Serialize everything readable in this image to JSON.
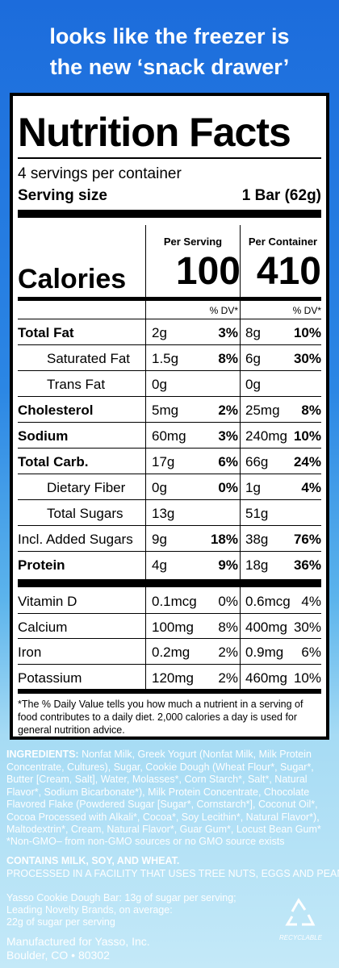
{
  "header": {
    "lines": [
      "looks like the freezer is",
      "the new ‘snack drawer’"
    ]
  },
  "nutrition": {
    "title": "Nutrition Facts",
    "servings": "4 servings per container",
    "serving_size_label": "Serving size",
    "serving_size": "1 Bar (62g)",
    "columns": [
      "Per Serving",
      "Per Container"
    ],
    "calories_label": "Calories",
    "calories": [
      "100",
      "410"
    ],
    "dv_headers": [
      "% DV*",
      "% DV*"
    ],
    "rows": [
      {
        "name": "Total Fat",
        "style": "bold",
        "amount": "2g",
        "dv": "3%",
        "container_amount": "8g",
        "container_dv": "10%"
      },
      {
        "name": "Saturated Fat",
        "style": "indent",
        "amount": "1.5g",
        "dv": "8%",
        "container_amount": "6g",
        "container_dv": "30%"
      },
      {
        "name": "Trans Fat",
        "style": "indent",
        "amount": "0g",
        "dv": null,
        "container_amount": "0g",
        "container_dv": null
      },
      {
        "name": "Cholesterol",
        "style": "bold",
        "amount": "5mg",
        "dv": "2%",
        "container_amount": "25mg",
        "container_dv": "8%"
      },
      {
        "name": "Sodium",
        "style": "bold",
        "amount": "60mg",
        "dv": "3%",
        "container_amount": "240mg",
        "container_dv": "10%"
      },
      {
        "name": "Total Carb.",
        "style": "bold",
        "amount": "17g",
        "dv": "6%",
        "container_amount": "66g",
        "container_dv": "24%"
      },
      {
        "name": "Dietary Fiber",
        "style": "indent",
        "amount": "0g",
        "dv": "0%",
        "container_amount": "1g",
        "container_dv": "4%"
      },
      {
        "name": "Total Sugars",
        "style": "indent",
        "amount": "13g",
        "dv": null,
        "container_amount": "51g",
        "container_dv": null
      },
      {
        "name": "Incl. Added Sugars",
        "style": "plain",
        "amount": "9g",
        "dv": "18%",
        "container_amount": "38g",
        "container_dv": "76%"
      },
      {
        "name": "Protein",
        "style": "bold",
        "amount": "4g",
        "dv": "9%",
        "container_amount": "18g",
        "container_dv": "36%"
      }
    ],
    "vitamins": [
      {
        "name": "Vitamin D",
        "amount": "0.1mcg",
        "dv": "0%",
        "container_amount": "0.6mcg",
        "container_dv": "4%"
      },
      {
        "name": "Calcium",
        "amount": "100mg",
        "dv": "8%",
        "container_amount": "400mg",
        "container_dv": "30%"
      },
      {
        "name": "Iron",
        "amount": "0.2mg",
        "dv": "2%",
        "container_amount": "0.9mg",
        "container_dv": "6%"
      },
      {
        "name": "Potassium",
        "amount": "120mg",
        "dv": "2%",
        "container_amount": "460mg",
        "container_dv": "10%"
      }
    ],
    "footnote": "*The % Daily Value tells you how much a nutrient in a serving of food contributes to a daily diet. 2,000 calories a day is used for general nutrition advice."
  },
  "ingredients": {
    "label": "INGREDIENTS:",
    "text": "Nonfat Milk, Greek Yogurt (Nonfat Milk, Milk Protein Concentrate, Cultures), Sugar, Cookie Dough (Wheat Flour*, Sugar*, Butter [Cream, Salt], Water, Molasses*, Corn Starch*, Salt*, Natural Flavor*, Sodium Bicarbonate*), Milk Protein Concentrate, Chocolate Flavored Flake (Powdered Sugar [Sugar*, Cornstarch*], Coconut Oil*, Cocoa Processed with Alkali*, Cocoa*, Soy Lecithin*, Natural Flavor*), Maltodextrin*, Cream, Natural Flavor*, Guar Gum*, Locust Bean Gum*",
    "non_gmo": "*Non-GMO– from non-GMO sources or no GMO source exists",
    "contains": "CONTAINS MILK, SOY, AND WHEAT.",
    "facility": "PROCESSED IN A FACILITY THAT USES TREE NUTS, EGGS AND PEANUTS."
  },
  "comparison": [
    "Yasso Cookie Dough Bar: 13g of sugar per serving;",
    "Leading Novelty Brands, on average:",
    "22g of sugar per serving"
  ],
  "manufacturer": [
    "Manufactured for Yasso, Inc.",
    "Boulder, CO • 80302"
  ],
  "recyclable": "RECYCLABLE"
}
